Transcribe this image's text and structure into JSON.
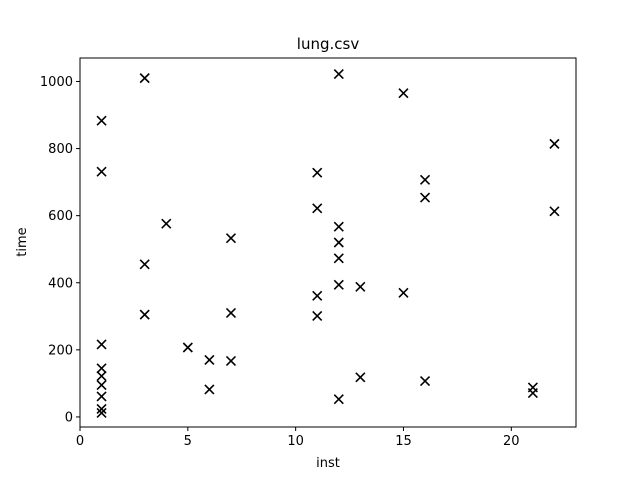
{
  "chart_data": {
    "type": "scatter",
    "title": "lung.csv",
    "xlabel": "inst",
    "ylabel": "time",
    "xlim": [
      0,
      23
    ],
    "ylim": [
      -30,
      1070
    ],
    "xticks": [
      0,
      5,
      10,
      15,
      20
    ],
    "yticks": [
      0,
      200,
      400,
      600,
      800,
      1000
    ],
    "grid": false,
    "marker": "x",
    "marker_color": "#000000",
    "series": [
      {
        "points": [
          [
            1,
            883
          ],
          [
            1,
            731
          ],
          [
            1,
            216
          ],
          [
            1,
            145
          ],
          [
            1,
            122
          ],
          [
            1,
            95
          ],
          [
            1,
            61
          ],
          [
            1,
            24
          ],
          [
            1,
            12
          ],
          [
            3,
            1010
          ],
          [
            3,
            455
          ],
          [
            3,
            305
          ],
          [
            4,
            576
          ],
          [
            5,
            207
          ],
          [
            6,
            170
          ],
          [
            6,
            82
          ],
          [
            7,
            533
          ],
          [
            7,
            310
          ],
          [
            7,
            167
          ],
          [
            11,
            728
          ],
          [
            11,
            622
          ],
          [
            11,
            361
          ],
          [
            11,
            301
          ],
          [
            12,
            1022
          ],
          [
            12,
            567
          ],
          [
            12,
            520
          ],
          [
            12,
            473
          ],
          [
            12,
            394
          ],
          [
            12,
            53
          ],
          [
            13,
            388
          ],
          [
            13,
            118
          ],
          [
            15,
            965
          ],
          [
            15,
            370
          ],
          [
            16,
            707
          ],
          [
            16,
            654
          ],
          [
            16,
            107
          ],
          [
            21,
            88
          ],
          [
            21,
            71
          ],
          [
            22,
            814
          ],
          [
            22,
            613
          ]
        ]
      }
    ]
  }
}
